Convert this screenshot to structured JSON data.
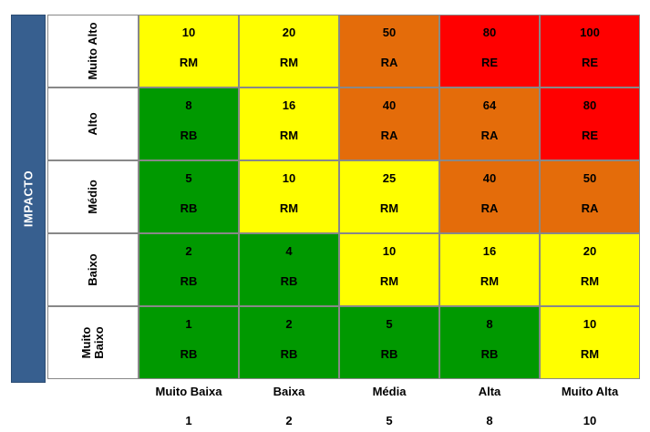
{
  "axis_title": "IMPACTO",
  "rows": [
    {
      "label": "Muito Alto",
      "cells": [
        {
          "value": "10",
          "class": "RM",
          "color": "#ffff00"
        },
        {
          "value": "20",
          "class": "RM",
          "color": "#ffff00"
        },
        {
          "value": "50",
          "class": "RA",
          "color": "#e46c0a"
        },
        {
          "value": "80",
          "class": "RE",
          "color": "#ff0000"
        },
        {
          "value": "100",
          "class": "RE",
          "color": "#ff0000"
        }
      ]
    },
    {
      "label": "Alto",
      "cells": [
        {
          "value": "8",
          "class": "RB",
          "color": "#009900"
        },
        {
          "value": "16",
          "class": "RM",
          "color": "#ffff00"
        },
        {
          "value": "40",
          "class": "RA",
          "color": "#e46c0a"
        },
        {
          "value": "64",
          "class": "RA",
          "color": "#e46c0a"
        },
        {
          "value": "80",
          "class": "RE",
          "color": "#ff0000"
        }
      ]
    },
    {
      "label": "Médio",
      "cells": [
        {
          "value": "5",
          "class": "RB",
          "color": "#009900"
        },
        {
          "value": "10",
          "class": "RM",
          "color": "#ffff00"
        },
        {
          "value": "25",
          "class": "RM",
          "color": "#ffff00"
        },
        {
          "value": "40",
          "class": "RA",
          "color": "#e46c0a"
        },
        {
          "value": "50",
          "class": "RA",
          "color": "#e46c0a"
        }
      ]
    },
    {
      "label": "Baixo",
      "cells": [
        {
          "value": "2",
          "class": "RB",
          "color": "#009900"
        },
        {
          "value": "4",
          "class": "RB",
          "color": "#009900"
        },
        {
          "value": "10",
          "class": "RM",
          "color": "#ffff00"
        },
        {
          "value": "16",
          "class": "RM",
          "color": "#ffff00"
        },
        {
          "value": "20",
          "class": "RM",
          "color": "#ffff00"
        }
      ]
    },
    {
      "label": "Muito\nBaixo",
      "cells": [
        {
          "value": "1",
          "class": "RB",
          "color": "#009900"
        },
        {
          "value": "2",
          "class": "RB",
          "color": "#009900"
        },
        {
          "value": "5",
          "class": "RB",
          "color": "#009900"
        },
        {
          "value": "8",
          "class": "RB",
          "color": "#009900"
        },
        {
          "value": "10",
          "class": "RM",
          "color": "#ffff00"
        }
      ]
    }
  ],
  "columns": [
    {
      "label": "Muito Baixa",
      "weight": "1"
    },
    {
      "label": "Baixa",
      "weight": "2"
    },
    {
      "label": "Média",
      "weight": "5"
    },
    {
      "label": "Alta",
      "weight": "8"
    },
    {
      "label": "Muito Alta",
      "weight": "10"
    }
  ]
}
